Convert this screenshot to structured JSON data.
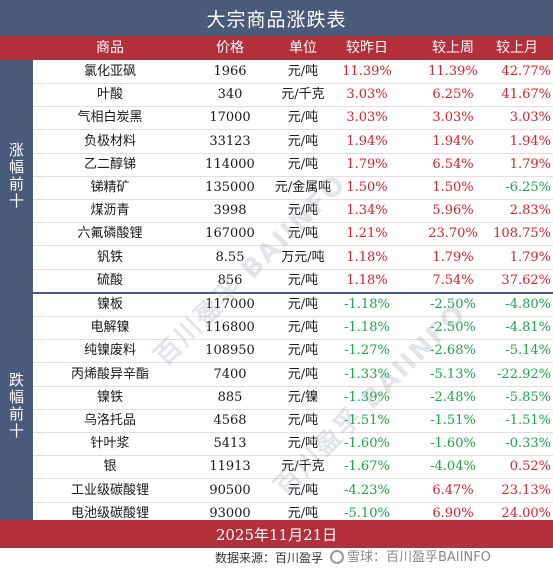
{
  "title": "大宗商品涨跌表",
  "headers": {
    "name": "商品",
    "price": "价格",
    "unit": "单位",
    "day": "较昨日",
    "week": "较上周",
    "month": "较上月"
  },
  "groups": {
    "up_label": "涨幅前十",
    "down_label": "跌幅前十"
  },
  "colors": {
    "header_bg": "#b3303a",
    "title_bg": "#4a5a7a",
    "up": "#d4232a",
    "down": "#1ea34a"
  },
  "rows_up": [
    {
      "name": "氯化亚砜",
      "price": "1966",
      "unit": "元/吨",
      "day": "11.39%",
      "week": "11.39%",
      "month": "42.77%"
    },
    {
      "name": "叶酸",
      "price": "340",
      "unit": "元/千克",
      "day": "3.03%",
      "week": "6.25%",
      "month": "41.67%"
    },
    {
      "name": "气相白炭黑",
      "price": "17000",
      "unit": "元/吨",
      "day": "3.03%",
      "week": "3.03%",
      "month": "3.03%"
    },
    {
      "name": "负极材料",
      "price": "33123",
      "unit": "元/吨",
      "day": "1.94%",
      "week": "1.94%",
      "month": "1.94%"
    },
    {
      "name": "乙二醇锑",
      "price": "114000",
      "unit": "元/吨",
      "day": "1.79%",
      "week": "6.54%",
      "month": "1.79%"
    },
    {
      "name": "锑精矿",
      "price": "135000",
      "unit": "元/金属吨",
      "day": "1.50%",
      "week": "1.50%",
      "month": "-6.25%"
    },
    {
      "name": "煤沥青",
      "price": "3998",
      "unit": "元/吨",
      "day": "1.34%",
      "week": "5.96%",
      "month": "2.83%"
    },
    {
      "name": "六氟磷酸锂",
      "price": "167000",
      "unit": "元/吨",
      "day": "1.21%",
      "week": "23.70%",
      "month": "108.75%"
    },
    {
      "name": "钒铁",
      "price": "8.55",
      "unit": "万元/吨",
      "day": "1.18%",
      "week": "1.79%",
      "month": "1.79%"
    },
    {
      "name": "硫酸",
      "price": "856",
      "unit": "元/吨",
      "day": "1.18%",
      "week": "7.54%",
      "month": "37.62%"
    }
  ],
  "rows_down": [
    {
      "name": "镍板",
      "price": "117000",
      "unit": "元/吨",
      "day": "-1.18%",
      "week": "-2.50%",
      "month": "-4.80%"
    },
    {
      "name": "电解镍",
      "price": "116800",
      "unit": "元/吨",
      "day": "-1.18%",
      "week": "-2.50%",
      "month": "-4.81%"
    },
    {
      "name": "纯镍废料",
      "price": "108950",
      "unit": "元/吨",
      "day": "-1.27%",
      "week": "-2.68%",
      "month": "-5.14%"
    },
    {
      "name": "丙烯酸异辛酯",
      "price": "7400",
      "unit": "元/吨",
      "day": "-1.33%",
      "week": "-5.13%",
      "month": "-22.92%"
    },
    {
      "name": "镍铁",
      "price": "885",
      "unit": "元/镍",
      "day": "-1.39%",
      "week": "-2.48%",
      "month": "-5.85%"
    },
    {
      "name": "乌洛托品",
      "price": "4568",
      "unit": "元/吨",
      "day": "-1.51%",
      "week": "-1.51%",
      "month": "-1.51%"
    },
    {
      "name": "针叶浆",
      "price": "5413",
      "unit": "元/吨",
      "day": "-1.60%",
      "week": "-1.60%",
      "month": "-0.33%"
    },
    {
      "name": "银",
      "price": "11913",
      "unit": "元/千克",
      "day": "-1.67%",
      "week": "-4.04%",
      "month": "0.52%"
    },
    {
      "name": "工业级碳酸锂",
      "price": "90500",
      "unit": "元/吨",
      "day": "-4.23%",
      "week": "6.47%",
      "month": "23.13%"
    },
    {
      "name": "电池级碳酸锂",
      "price": "93000",
      "unit": "元/吨",
      "day": "-5.10%",
      "week": "6.90%",
      "month": "24.00%"
    }
  ],
  "watermark": "百川盈孚 BAIINFO",
  "footer": {
    "date": "2025年11月21日",
    "source": "数据来源：百川盈孚",
    "xueqiu": "雪球：百川盈孚BAIINFO"
  }
}
